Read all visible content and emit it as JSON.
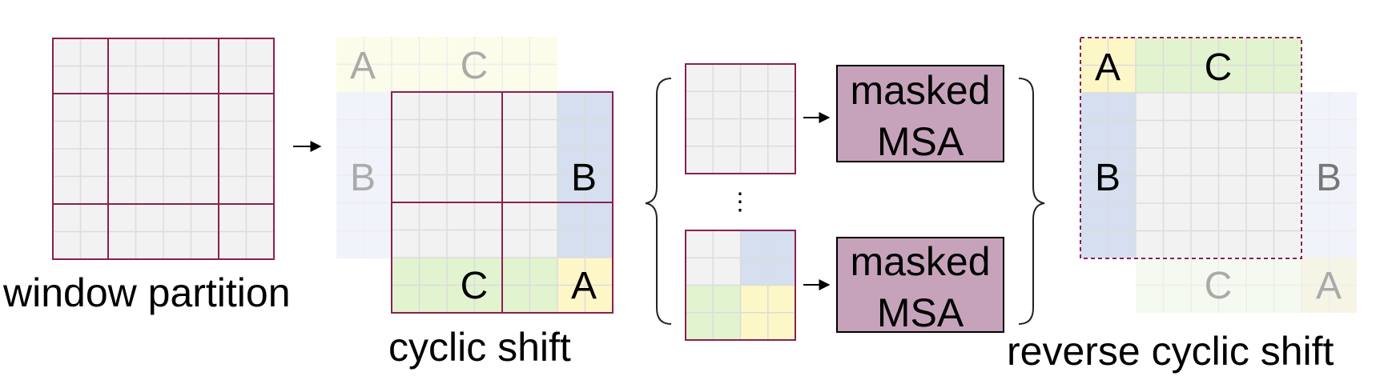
{
  "labels": {
    "window_partition": "window partition",
    "cyclic_shift": "cyclic shift",
    "reverse_cyclic_shift": "reverse cyclic shift",
    "masked_msa_top_line1": "masked",
    "masked_msa_top_line2": "MSA",
    "masked_msa_bottom_line1": "masked",
    "masked_msa_bottom_line2": "MSA",
    "ellipsis": "⋮"
  },
  "region_letters": {
    "A": "A",
    "B": "B",
    "C": "C"
  },
  "colors": {
    "window_border": "#8a2050",
    "grid_fill": "#f2f2f2",
    "grid_line": "#dcdcdc",
    "region_A": "#fdf7c8",
    "region_B": "#d5dff0",
    "region_C": "#e2f3cf",
    "msa_fill": "#c6a3bb",
    "faded_letter": "#aaaaaa"
  },
  "icons": {
    "arrow": "right-arrow-icon",
    "brace_open": "left-curly-brace-icon",
    "brace_close": "right-curly-brace-icon"
  }
}
